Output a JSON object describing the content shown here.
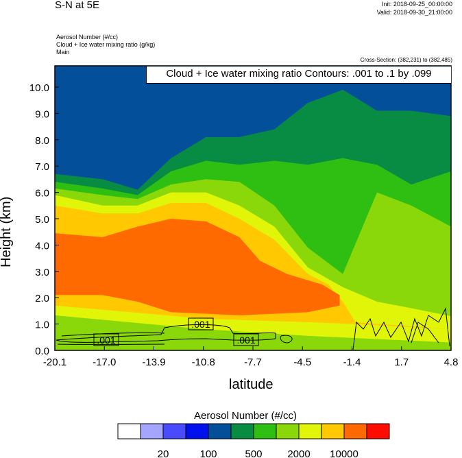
{
  "header": {
    "title": "S-N at 5E",
    "init": "Init: 2018-09-25_00:00:00",
    "valid": "Valid: 2018-09-30_21:00:00",
    "field_lines": [
      "Aerosol Number   (#/cc)",
      "Cloud + Ice water mixing ratio   (g/kg)",
      "Main"
    ],
    "cross_section": "Cross-Section: (382,231) to (382,485)"
  },
  "chart_data": {
    "type": "heatmap",
    "title": "S-N at 5E",
    "contour_label": "Cloud + Ice water mixing ratio Contours: .001 to .1 by .099",
    "contour_value_label": ".001",
    "xlabel": "latitude",
    "ylabel": "Height (km)",
    "xlim": [
      -20.1,
      4.8
    ],
    "ylim": [
      0,
      10.8
    ],
    "xticks": [
      "-20.1",
      "-17.0",
      "-13.9",
      "-10.8",
      "-7.7",
      "-4.5",
      "-1.4",
      "1.7",
      "4.8"
    ],
    "yticks": [
      "0.0",
      "1.0",
      "2.0",
      "3.0",
      "4.0",
      "5.0",
      "6.0",
      "7.0",
      "8.0",
      "9.0",
      "10.0"
    ],
    "background_color": "#044f9a",
    "filled_levels": [
      {
        "color": "#088c44",
        "top": [
          [
            -20.1,
            6.7
          ],
          [
            -17.1,
            6.5
          ],
          [
            -14.9,
            6.1
          ],
          [
            -12.8,
            7.3
          ],
          [
            -10.6,
            8.1
          ],
          [
            -8.5,
            8.1
          ],
          [
            -6.3,
            8.4
          ],
          [
            -4.2,
            9.4
          ],
          [
            -2.0,
            9.9
          ],
          [
            0.15,
            9.1
          ],
          [
            2.3,
            9.1
          ],
          [
            4.8,
            8.9
          ]
        ]
      },
      {
        "color": "#2fbf12",
        "top": [
          [
            -20.1,
            6.4
          ],
          [
            -17.1,
            6.15
          ],
          [
            -14.9,
            5.9
          ],
          [
            -12.8,
            6.8
          ],
          [
            -10.6,
            7.2
          ],
          [
            -8.5,
            7.05
          ],
          [
            -6.3,
            7.2
          ],
          [
            -4.2,
            7.05
          ],
          [
            -2.0,
            7.3
          ],
          [
            0.15,
            7.05
          ],
          [
            2.3,
            6.3
          ],
          [
            4.8,
            6.8
          ]
        ]
      },
      {
        "color": "#8ad80a",
        "top": [
          [
            -20.1,
            6.15
          ],
          [
            -17.1,
            5.9
          ],
          [
            -14.9,
            5.75
          ],
          [
            -12.8,
            6.3
          ],
          [
            -10.6,
            6.5
          ],
          [
            -8.5,
            6.4
          ],
          [
            -6.3,
            5.5
          ],
          [
            -4.2,
            3.9
          ],
          [
            -2.0,
            2.9
          ],
          [
            0.15,
            6.0
          ],
          [
            2.3,
            5.5
          ],
          [
            4.8,
            4.7
          ]
        ]
      },
      {
        "color": "#e0f508",
        "top": [
          [
            -20.1,
            5.9
          ],
          [
            -17.1,
            5.5
          ],
          [
            -14.9,
            5.5
          ],
          [
            -12.8,
            6.0
          ],
          [
            -10.6,
            6.0
          ],
          [
            -8.5,
            5.5
          ],
          [
            -6.3,
            4.7
          ],
          [
            -4.2,
            3.15
          ],
          [
            -2.0,
            2.4
          ],
          [
            0.15,
            1.85
          ],
          [
            2.3,
            1.6
          ],
          [
            4.8,
            1.3
          ]
        ],
        "bottom": [
          [
            -20.1,
            1.33
          ],
          [
            -10.6,
            0.8
          ],
          [
            -4.2,
            0.55
          ],
          [
            4.8,
            0.3
          ]
        ]
      },
      {
        "color": "#ffc800",
        "top": [
          [
            -20.1,
            5.5
          ],
          [
            -17.1,
            5.2
          ],
          [
            -14.9,
            5.2
          ],
          [
            -12.8,
            5.6
          ],
          [
            -10.6,
            5.6
          ],
          [
            -8.5,
            5.0
          ],
          [
            -6.3,
            4.2
          ],
          [
            -4.2,
            2.9
          ],
          [
            -2.9,
            2.5
          ],
          [
            -2.0,
            1.85
          ],
          [
            -1.2,
            1.07
          ],
          [
            4.8,
            0.8
          ]
        ],
        "bottom": [
          [
            -20.1,
            1.7
          ],
          [
            -10.6,
            1.2
          ],
          [
            -4.2,
            1.07
          ],
          [
            -1.2,
            1.0
          ],
          [
            4.8,
            0.8
          ]
        ]
      },
      {
        "color": "#ff6a00",
        "top": [
          [
            -20.1,
            4.45
          ],
          [
            -17.1,
            4.3
          ],
          [
            -14.9,
            4.7
          ],
          [
            -12.8,
            5.0
          ],
          [
            -10.6,
            4.9
          ],
          [
            -8.5,
            4.3
          ],
          [
            -7.2,
            3.4
          ],
          [
            -5.5,
            2.9
          ],
          [
            -3.3,
            2.5
          ],
          [
            -2.2,
            2.1
          ]
        ],
        "bottom": [
          [
            -2.2,
            1.7
          ],
          [
            -4.2,
            1.45
          ],
          [
            -8.5,
            1.33
          ],
          [
            -12.8,
            1.45
          ],
          [
            -14.9,
            1.85
          ],
          [
            -17.1,
            2.1
          ],
          [
            -20.1,
            2.1
          ]
        ]
      }
    ],
    "colorbar": {
      "title": "Aerosol Number  (#/cc)",
      "colors": [
        "#ffffff",
        "#a5a5ff",
        "#4a4aff",
        "#0011ee",
        "#044f9a",
        "#088c44",
        "#2fbf12",
        "#8ad80a",
        "#e0f508",
        "#ffc800",
        "#ff6a00",
        "#ff0c00"
      ],
      "labels": [
        "20",
        "100",
        "500",
        "2000",
        "10000"
      ]
    }
  }
}
